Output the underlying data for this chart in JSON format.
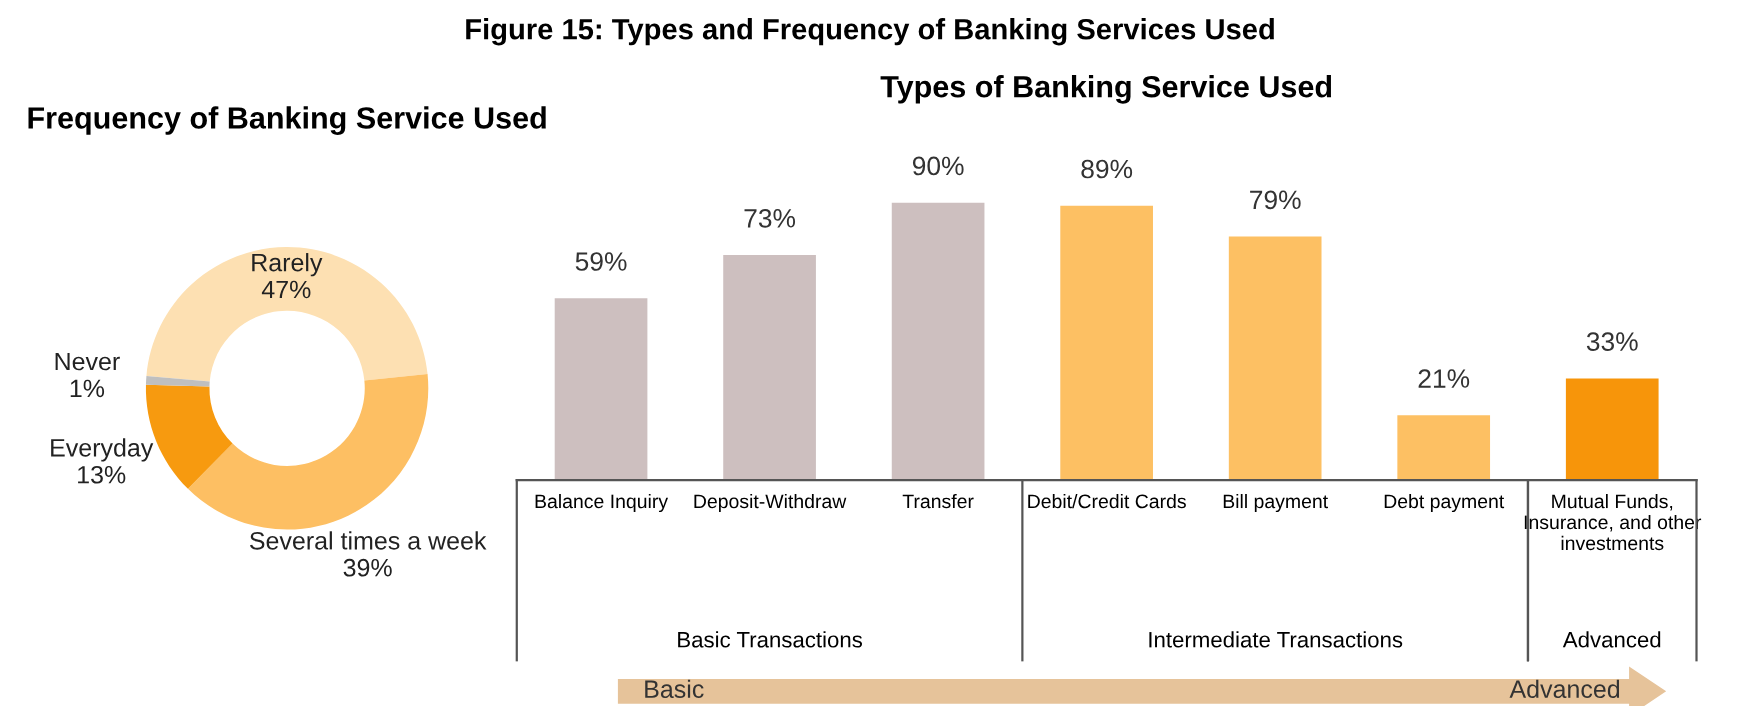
{
  "chart_data": [
    {
      "type": "donut",
      "title": "Frequency of Banking Service Used",
      "annotations": [
        "Figure 15: Types and Frequency of Banking Services Used"
      ],
      "categories": [
        "Rarely",
        "Several times a week",
        "Everyday",
        "Never"
      ],
      "values": [
        47,
        39,
        13,
        1
      ],
      "value_labels": [
        "47%",
        "39%",
        "13%",
        "1%"
      ],
      "colors": [
        "#fde0b2",
        "#fdbf63",
        "#f79a0f",
        "#bfbfbf"
      ]
    },
    {
      "type": "bar",
      "title": "Types of Banking Service Used",
      "data_labels": true,
      "categories": [
        "Balance Inquiry",
        "Deposit-Withdraw",
        "Transfer",
        "Debit/Credit Cards",
        "Bill payment",
        "Debt payment",
        "Mutual Funds,\nInsurance, and other\ninvestments"
      ],
      "values": [
        59,
        73,
        90,
        89,
        79,
        21,
        33
      ],
      "value_labels": [
        "59%",
        "73%",
        "90%",
        "89%",
        "79%",
        "21%",
        "33%"
      ],
      "colors": [
        "#cdbfbf",
        "#cdbfbf",
        "#cdbfbf",
        "#fdc063",
        "#fdc063",
        "#fdc063",
        "#f7950a"
      ],
      "annotations": [
        "Basic Transactions",
        "Intermediate Transactions",
        "Advanced",
        "Basic",
        "Advanced"
      ]
    }
  ]
}
